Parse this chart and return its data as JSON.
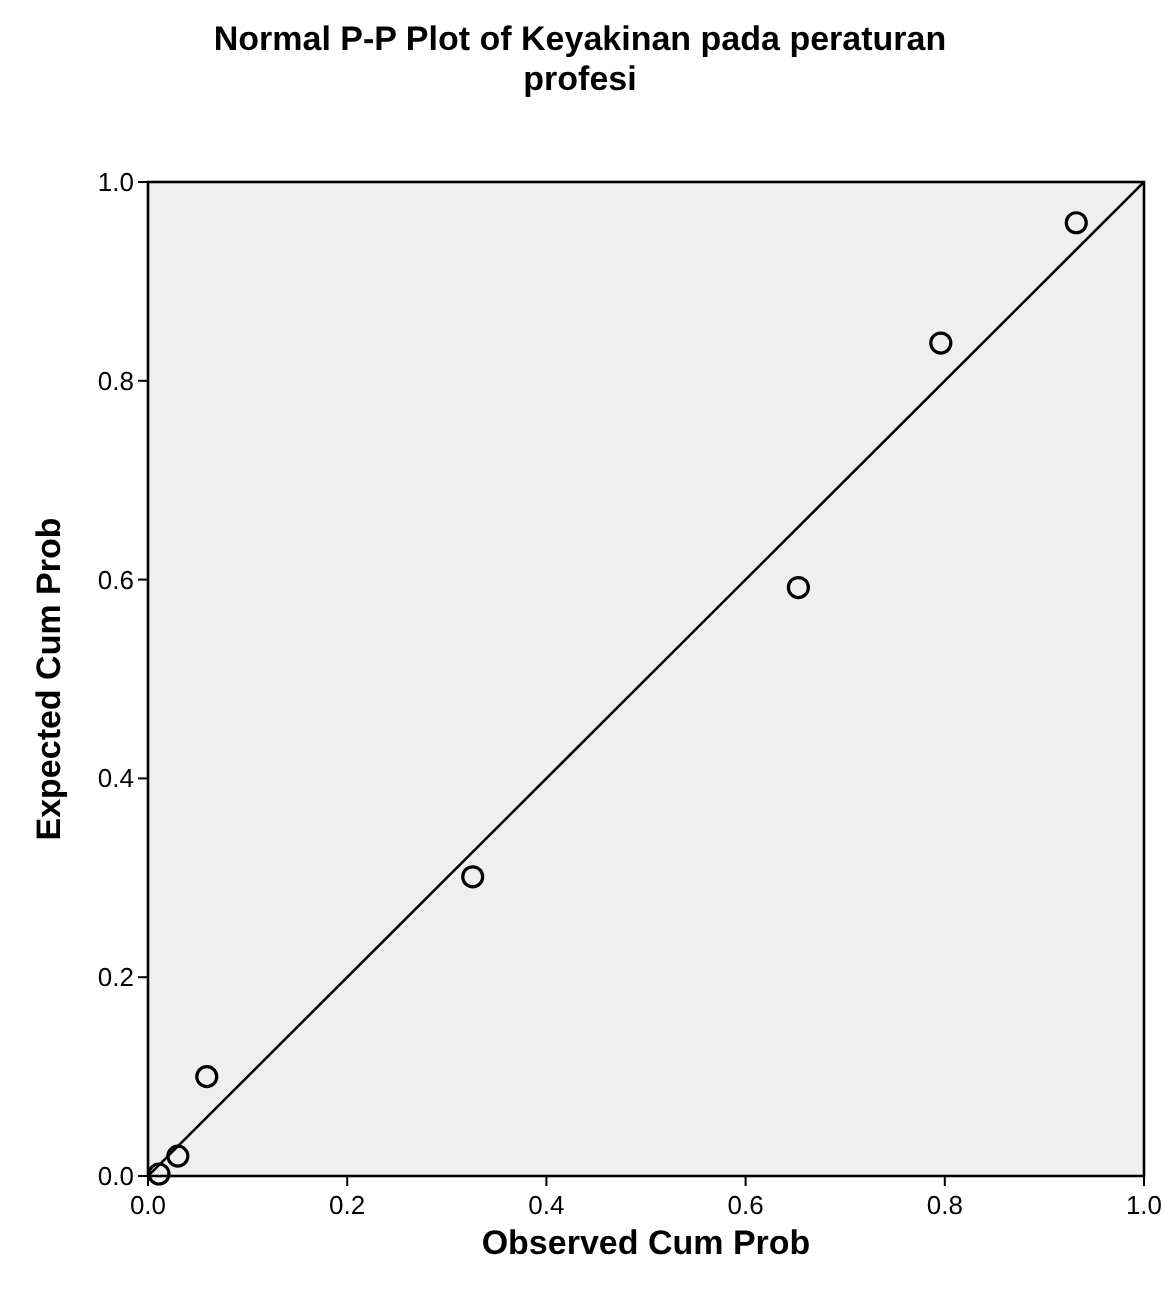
{
  "chart_data": {
    "type": "scatter",
    "title": "Normal P-P Plot of Keyakinan pada peraturan profesi",
    "xlabel": "Observed Cum Prob",
    "ylabel": "Expected Cum Prob",
    "xlim": [
      0,
      1
    ],
    "ylim": [
      0,
      1
    ],
    "xticks": [
      {
        "value": 0,
        "label": "0.0"
      },
      0.2,
      0.4,
      0.6,
      0.8,
      {
        "value": 1,
        "label": "1.0"
      }
    ],
    "yticks": [
      {
        "value": 0,
        "label": "0.0"
      },
      0.2,
      0.4,
      0.6,
      0.8,
      {
        "value": 1,
        "label": "1.0"
      }
    ],
    "grid": false,
    "marker": "circle",
    "series": [
      {
        "color": "#000000",
        "x": [
          0.011,
          0.03,
          0.059,
          0.326,
          0.653,
          0.796,
          0.932
        ],
        "values": [
          0.002,
          0.02,
          0.1,
          0.301,
          0.592,
          0.838,
          0.959
        ]
      },
      {
        "type": "line",
        "color": "#000000",
        "line_style": "solid",
        "marker": "none",
        "x": [
          0,
          1
        ],
        "values": [
          0,
          1
        ]
      }
    ]
  }
}
